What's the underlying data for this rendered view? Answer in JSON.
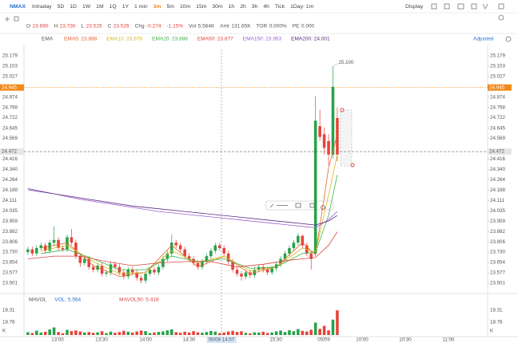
{
  "toolbar": {
    "symbol": "NMAX",
    "periods": [
      "Intraday",
      "5D",
      "1D",
      "1W",
      "1M",
      "1Q",
      "1Y",
      "1 min",
      "3m",
      "5m",
      "10m",
      "15m",
      "30m",
      "1h",
      "2h",
      "3h",
      "4h",
      "Tick",
      "1Day: 1m"
    ],
    "active": "3m",
    "display": "Display"
  },
  "quote": [
    {
      "label": "O",
      "value": "23.690"
    },
    {
      "label": "H",
      "value": "23.730"
    },
    {
      "label": "L",
      "value": "23.526"
    },
    {
      "label": "C",
      "value": "23.526"
    },
    {
      "label": "Chg",
      "value": "-0.274"
    },
    {
      "value": "-1.15%"
    },
    {
      "label": "Vol",
      "value": "5.564K"
    },
    {
      "label": "Amt",
      "value": "131.65K"
    },
    {
      "label": "TOR",
      "value": "0.000%"
    },
    {
      "label": "PE",
      "value": "0.000"
    }
  ],
  "adjusted": "Adjusted",
  "chart_data": {
    "type": "candlestick",
    "indicator": "EMA",
    "up_color": "#27a24a",
    "down_color": "#e5433b",
    "xlim": [
      -0.9,
      105.5
    ],
    "ylim": [
      23.43,
      25.226
    ],
    "yticks": [
      25.179,
      25.103,
      25.027,
      24.874,
      24.798,
      24.722,
      24.645,
      24.569,
      24.416,
      {
        "value": 24.34,
        "label": "24.340"
      },
      24.264,
      24.188,
      24.111,
      24.035,
      23.959,
      23.882,
      23.806,
      {
        "value": 23.73,
        "label": "23.730"
      },
      23.654,
      23.577,
      23.501
    ],
    "xticks": [
      {
        "value": 6.8,
        "label": "13:00"
      },
      {
        "value": 16.9,
        "label": "13:30"
      },
      {
        "value": 27,
        "label": "14:00"
      },
      {
        "value": 37,
        "label": "14:30"
      },
      {
        "value": 56.9,
        "label": "15:30"
      },
      {
        "value": 67.9,
        "label": "05/09"
      },
      {
        "value": 76.7,
        "label": "10:00"
      },
      {
        "value": 86.6,
        "label": "10:30"
      },
      {
        "value": 96.5,
        "label": "11:00"
      }
    ],
    "last_price": 24.945,
    "high_marker": {
      "x": 70,
      "value": 25.1,
      "label": "25.100"
    },
    "crosshair": {
      "x": 44.4,
      "price": 24.472,
      "time_label": "05/08 14:57"
    },
    "candles": [
      [
        23.73,
        23.77,
        23.71,
        23.75
      ],
      [
        23.75,
        23.77,
        23.7,
        23.72
      ],
      [
        23.72,
        23.78,
        23.7,
        23.76
      ],
      [
        23.76,
        23.8,
        23.74,
        23.78
      ],
      [
        23.78,
        23.8,
        23.72,
        23.74
      ],
      [
        23.74,
        23.82,
        23.72,
        23.8
      ],
      [
        23.8,
        23.92,
        23.78,
        23.82
      ],
      [
        23.82,
        23.84,
        23.74,
        23.76
      ],
      [
        23.76,
        23.78,
        23.73,
        23.75
      ],
      [
        23.75,
        23.86,
        23.73,
        23.84
      ],
      [
        23.84,
        23.9,
        23.78,
        23.8
      ],
      [
        23.8,
        23.82,
        23.68,
        23.7
      ],
      [
        23.7,
        23.72,
        23.62,
        23.65
      ],
      [
        23.65,
        23.7,
        23.63,
        23.68
      ],
      [
        23.68,
        23.7,
        23.6,
        23.62
      ],
      [
        23.62,
        23.64,
        23.58,
        23.6
      ],
      [
        23.6,
        23.65,
        23.58,
        23.63
      ],
      [
        23.63,
        23.65,
        23.55,
        23.57
      ],
      [
        23.57,
        23.6,
        23.55,
        23.58
      ],
      [
        23.58,
        23.66,
        23.56,
        23.64
      ],
      [
        23.64,
        23.66,
        23.6,
        23.62
      ],
      [
        23.62,
        23.64,
        23.56,
        23.58
      ],
      [
        23.58,
        23.6,
        23.53,
        23.55
      ],
      [
        23.55,
        23.62,
        23.53,
        23.6
      ],
      [
        23.6,
        23.62,
        23.56,
        23.58
      ],
      [
        23.58,
        23.6,
        23.52,
        23.54
      ],
      [
        23.54,
        23.56,
        23.5,
        23.52
      ],
      [
        23.52,
        23.59,
        23.5,
        23.57
      ],
      [
        23.57,
        23.62,
        23.55,
        23.6
      ],
      [
        23.6,
        23.62,
        23.56,
        23.58
      ],
      [
        23.58,
        23.64,
        23.56,
        23.62
      ],
      [
        23.62,
        23.7,
        23.6,
        23.68
      ],
      [
        23.68,
        23.74,
        23.66,
        23.72
      ],
      [
        23.72,
        23.86,
        23.7,
        23.8
      ],
      [
        23.8,
        23.82,
        23.76,
        23.78
      ],
      [
        23.78,
        23.8,
        23.73,
        23.75
      ],
      [
        23.75,
        23.77,
        23.68,
        23.7
      ],
      [
        23.7,
        23.72,
        23.66,
        23.68
      ],
      [
        23.68,
        23.7,
        23.63,
        23.65
      ],
      [
        23.65,
        23.67,
        23.6,
        23.62
      ],
      [
        23.62,
        23.68,
        23.6,
        23.66
      ],
      [
        23.66,
        23.72,
        23.64,
        23.7
      ],
      [
        23.7,
        23.76,
        23.68,
        23.74
      ],
      [
        23.74,
        23.8,
        23.72,
        23.78
      ],
      [
        23.78,
        23.8,
        23.74,
        23.76
      ],
      [
        23.76,
        23.78,
        23.7,
        23.72
      ],
      [
        23.72,
        23.74,
        23.64,
        23.66
      ],
      [
        23.66,
        23.68,
        23.58,
        23.6
      ],
      [
        23.6,
        23.62,
        23.55,
        23.57
      ],
      [
        23.57,
        23.59,
        23.52,
        23.55
      ],
      [
        23.55,
        23.6,
        23.53,
        23.58
      ],
      [
        23.58,
        23.6,
        23.54,
        23.56
      ],
      [
        23.56,
        23.62,
        23.54,
        23.6
      ],
      [
        23.6,
        23.64,
        23.58,
        23.62
      ],
      [
        23.62,
        23.64,
        23.58,
        23.6
      ],
      [
        23.6,
        23.62,
        23.56,
        23.58
      ],
      [
        23.58,
        23.63,
        23.56,
        23.61
      ],
      [
        23.61,
        23.66,
        23.59,
        23.64
      ],
      [
        23.64,
        23.7,
        23.62,
        23.68
      ],
      [
        23.68,
        23.74,
        23.66,
        23.72
      ],
      [
        23.72,
        23.78,
        23.7,
        23.76
      ],
      [
        23.76,
        23.82,
        23.74,
        23.8
      ],
      [
        23.8,
        23.87,
        23.78,
        23.85
      ],
      [
        23.85,
        23.86,
        23.76,
        23.78
      ],
      [
        23.78,
        23.8,
        23.7,
        23.72
      ],
      [
        23.72,
        23.74,
        23.6,
        23.68
      ],
      [
        23.72,
        24.88,
        23.7,
        24.7
      ],
      [
        24.66,
        24.78,
        24.55,
        24.58
      ],
      [
        24.6,
        24.65,
        24.45,
        24.5
      ],
      [
        24.55,
        24.6,
        24.37,
        24.45
      ],
      [
        24.45,
        25.1,
        24.42,
        24.95
      ],
      [
        24.72,
        24.8,
        24.4,
        24.45
      ]
    ],
    "series": [
      {
        "legend": "EMA5: 23.888",
        "color": "#e8622c",
        "x": [
          3,
          9,
          15,
          21,
          27,
          33,
          39,
          45,
          51,
          57,
          63,
          66,
          69,
          71
        ],
        "values": [
          23.76,
          23.8,
          23.63,
          23.55,
          23.58,
          23.78,
          23.62,
          23.7,
          23.57,
          23.62,
          23.8,
          23.71,
          24.35,
          24.6
        ]
      },
      {
        "legend": "EMA10: 23.978",
        "color": "#d6b820",
        "x": [
          3,
          9,
          15,
          21,
          27,
          33,
          39,
          45,
          51,
          57,
          63,
          66,
          69,
          71
        ],
        "values": [
          23.74,
          23.78,
          23.66,
          23.57,
          23.58,
          23.74,
          23.65,
          23.7,
          23.59,
          23.62,
          23.76,
          23.73,
          24.15,
          24.45
        ]
      },
      {
        "legend": "EMA20: 23.888",
        "color": "#3bb54a",
        "x": [
          3,
          9,
          15,
          21,
          27,
          33,
          39,
          45,
          51,
          57,
          63,
          66,
          69,
          71
        ],
        "values": [
          23.72,
          23.75,
          23.68,
          23.6,
          23.6,
          23.7,
          23.66,
          23.68,
          23.61,
          23.62,
          23.72,
          23.73,
          24.0,
          24.3
        ]
      },
      {
        "legend": "EMA50: 23.877",
        "color": "#d9463e",
        "x": [
          0,
          6,
          12,
          18,
          24,
          30,
          36,
          42,
          48,
          54,
          60,
          66,
          69,
          71
        ],
        "values": [
          23.68,
          23.7,
          23.7,
          23.66,
          23.63,
          23.65,
          23.66,
          23.66,
          23.62,
          23.64,
          23.67,
          23.69,
          23.78,
          23.88
        ]
      },
      {
        "legend": "EMA150: 23.953",
        "color": "#a05fd0",
        "x": [
          0,
          6,
          12,
          18,
          24,
          30,
          36,
          42,
          48,
          54,
          60,
          66,
          69,
          71
        ],
        "values": [
          24.2,
          24.16,
          24.12,
          24.09,
          24.06,
          24.03,
          24.01,
          23.99,
          23.97,
          23.95,
          23.93,
          23.91,
          23.97,
          24.03
        ]
      },
      {
        "legend": "EMA200: 24.001",
        "color": "#5a2d82",
        "x": [
          0,
          6,
          12,
          18,
          24,
          30,
          36,
          42,
          48,
          54,
          60,
          66,
          69,
          71
        ],
        "values": [
          24.19,
          24.16,
          24.13,
          24.1,
          24.07,
          24.05,
          24.03,
          24.01,
          23.99,
          23.97,
          23.95,
          23.93,
          23.96,
          24.0
        ]
      }
    ],
    "volume": {
      "legend": [
        "MAVOL",
        "VOL: 5.564",
        "MAVOL50: 5.418"
      ],
      "ylim": [
        0,
        18.31
      ],
      "axis_labels": [
        "18.31",
        "18.78",
        "K"
      ],
      "values": [
        2.1,
        1.5,
        3.2,
        1.8,
        2.4,
        4.1,
        5.6,
        2.2,
        1.3,
        3.8,
        2.9,
        3.4,
        2.6,
        1.9,
        2.2,
        1.6,
        2.0,
        2.8,
        1.4,
        2.5,
        1.7,
        2.2,
        3.1,
        2.4,
        1.8,
        2.6,
        3.3,
        2.9,
        1.5,
        1.9,
        2.3,
        2.7,
        3.5,
        4.2,
        2.1,
        1.6,
        2.4,
        1.8,
        2.9,
        2.0,
        1.7,
        2.2,
        3.0,
        2.5,
        1.4,
        1.9,
        2.6,
        3.1,
        2.3,
        2.8,
        1.6,
        1.2,
        2.0,
        1.8,
        2.4,
        1.5,
        1.9,
        2.7,
        3.3,
        2.2,
        3.6,
        2.8,
        4.4,
        3.1,
        2.6,
        3.9,
        9.2,
        4.6,
        6.8,
        3.5,
        11.4,
        18.3
      ]
    }
  }
}
